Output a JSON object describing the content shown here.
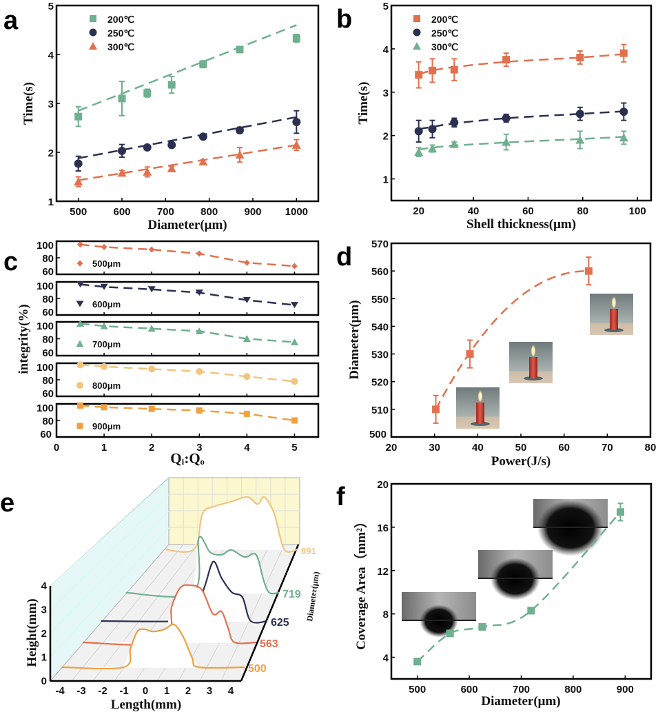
{
  "chart_data": [
    {
      "panel": "a",
      "type": "scatter",
      "xlabel": "Diameter(μm)",
      "ylabel": "Time(s)",
      "xlim": [
        450,
        1050
      ],
      "ylim": [
        1,
        5
      ],
      "xticks": [
        500,
        600,
        700,
        800,
        900,
        1000
      ],
      "yticks": [
        1,
        2,
        3,
        4,
        5
      ],
      "legend_position": "top-left",
      "x": [
        500,
        600,
        658,
        714,
        786,
        870,
        1000
      ],
      "series": [
        {
          "name": "200℃",
          "marker": "square",
          "color": "#6fb08f",
          "values": [
            2.73,
            3.1,
            3.21,
            3.38,
            3.8,
            4.1,
            4.33
          ],
          "errors": [
            0.2,
            0.35,
            0.08,
            0.17,
            0.07,
            0.03,
            0.08
          ],
          "fit": [
            [
              500,
              2.85
            ],
            [
              1000,
              4.6
            ]
          ]
        },
        {
          "name": "250℃",
          "marker": "circle",
          "color": "#2b3050",
          "values": [
            1.77,
            2.03,
            2.1,
            2.15,
            2.32,
            2.45,
            2.62
          ],
          "errors": [
            0.15,
            0.13,
            0.03,
            0.03,
            0.03,
            0.06,
            0.23
          ],
          "fit": [
            [
              500,
              1.88
            ],
            [
              1000,
              2.72
            ]
          ]
        },
        {
          "name": "300℃",
          "marker": "triangle",
          "color": "#e2704f",
          "values": [
            1.4,
            1.58,
            1.6,
            1.67,
            1.81,
            1.95,
            2.15
          ],
          "errors": [
            0.1,
            0.05,
            0.1,
            0.04,
            0.04,
            0.15,
            0.11
          ],
          "fit": [
            [
              500,
              1.43
            ],
            [
              1000,
              2.15
            ]
          ]
        }
      ]
    },
    {
      "panel": "b",
      "type": "scatter",
      "xlabel": "Shell thickness(μm)",
      "ylabel": "Time(s)",
      "xlim": [
        10,
        105
      ],
      "ylim": [
        0.5,
        5
      ],
      "xticks": [
        20,
        40,
        60,
        80,
        100
      ],
      "yticks": [
        1,
        2,
        3,
        4,
        5
      ],
      "legend_position": "top-left",
      "x": [
        20,
        25,
        33,
        52,
        79,
        95
      ],
      "series": [
        {
          "name": "200℃",
          "marker": "square",
          "color": "#e2704f",
          "values": [
            3.4,
            3.5,
            3.52,
            3.75,
            3.8,
            3.9
          ],
          "errors": [
            0.3,
            0.27,
            0.25,
            0.15,
            0.15,
            0.2
          ],
          "fit": [
            [
              20,
              3.42
            ],
            [
              25,
              3.5
            ],
            [
              33,
              3.58
            ],
            [
              52,
              3.7
            ],
            [
              79,
              3.8
            ],
            [
              95,
              3.88
            ]
          ]
        },
        {
          "name": "250℃",
          "marker": "circle",
          "color": "#2b3050",
          "values": [
            2.1,
            2.15,
            2.3,
            2.4,
            2.5,
            2.55
          ],
          "errors": [
            0.25,
            0.2,
            0.1,
            0.09,
            0.15,
            0.2
          ],
          "fit": [
            [
              20,
              2.15
            ],
            [
              25,
              2.2
            ],
            [
              33,
              2.28
            ],
            [
              52,
              2.4
            ],
            [
              79,
              2.5
            ],
            [
              95,
              2.56
            ]
          ]
        },
        {
          "name": "300℃",
          "marker": "triangle",
          "color": "#6fb08f",
          "values": [
            1.62,
            1.7,
            1.8,
            1.85,
            1.9,
            1.95
          ],
          "errors": [
            0.1,
            0.08,
            0.05,
            0.18,
            0.2,
            0.15
          ],
          "fit": [
            [
              20,
              1.68
            ],
            [
              25,
              1.72
            ],
            [
              33,
              1.77
            ],
            [
              52,
              1.84
            ],
            [
              79,
              1.92
            ],
            [
              95,
              1.97
            ]
          ]
        }
      ]
    },
    {
      "panel": "c",
      "type": "line",
      "xlabel": "Qᵢ:Qₒ",
      "ylabel": "integrity(%)",
      "xlim": [
        0,
        5.5
      ],
      "ylim": [
        60,
        100
      ],
      "xticks": [
        0,
        1,
        2,
        3,
        4,
        5
      ],
      "yticks": [
        60,
        80,
        100
      ],
      "x": [
        0.5,
        1,
        2,
        3,
        4,
        5
      ],
      "series": [
        {
          "name": "500μm",
          "marker": "diamond",
          "color": "#e2704f",
          "values": [
            96,
            93,
            90,
            85,
            74,
            70
          ]
        },
        {
          "name": "600μm",
          "marker": "triangle-down",
          "color": "#2b3050",
          "values": [
            97,
            94,
            91,
            87,
            78,
            72
          ]
        },
        {
          "name": "700μm",
          "marker": "triangle",
          "color": "#6fb08f",
          "values": [
            98,
            95,
            92,
            89,
            80,
            76
          ]
        },
        {
          "name": "800μm",
          "marker": "circle",
          "color": "#f2c57e",
          "values": [
            98,
            96,
            93,
            90,
            84,
            78
          ]
        },
        {
          "name": "900μm",
          "marker": "square",
          "color": "#f0a040",
          "values": [
            98,
            96,
            94,
            92,
            88,
            80
          ]
        }
      ]
    },
    {
      "panel": "d",
      "type": "scatter",
      "xlabel": "Power(J/s)",
      "ylabel": "Diameter(μm)",
      "xlim": [
        20,
        80
      ],
      "ylim": [
        500,
        570
      ],
      "xticks": [
        20,
        30,
        40,
        50,
        60,
        70,
        80
      ],
      "yticks": [
        500,
        510,
        520,
        530,
        540,
        550,
        560,
        570
      ],
      "color": "#e2704f",
      "x": [
        30.3,
        38.2,
        65.7
      ],
      "values": [
        510,
        530,
        560
      ],
      "errors": [
        5,
        5,
        5
      ],
      "insets": [
        "candle-photo",
        "candle-photo",
        "candle-photo"
      ]
    },
    {
      "panel": "e",
      "type": "line",
      "xlabel": "Length(mm)",
      "ylabel": "Height(mm)",
      "zlabel": "Diameter(μm)",
      "xlim": [
        -4,
        4
      ],
      "ylim": [
        0,
        4
      ],
      "xticks": [
        -4,
        -3,
        -2,
        -1,
        0,
        1,
        2,
        3,
        4
      ],
      "yticks": [
        0,
        1,
        2,
        3,
        4
      ],
      "series": [
        {
          "name": "500",
          "color": "#f0a040",
          "points": [
            [
              -4,
              0
            ],
            [
              -1.3,
              0
            ],
            [
              -1,
              0.8
            ],
            [
              -0.7,
              1.5
            ],
            [
              -0.4,
              1.6
            ],
            [
              0,
              1.5
            ],
            [
              0.5,
              1.6
            ],
            [
              0.9,
              1.8
            ],
            [
              1.3,
              1.3
            ],
            [
              1.7,
              0.4
            ],
            [
              2,
              0
            ],
            [
              4,
              0
            ]
          ]
        },
        {
          "name": "563",
          "color": "#e2704f",
          "points": [
            [
              -4,
              0
            ],
            [
              -0.3,
              0
            ],
            [
              0.1,
              1.5
            ],
            [
              0.5,
              2.3
            ],
            [
              1,
              2.4
            ],
            [
              1.5,
              2.2
            ],
            [
              2,
              1.2
            ],
            [
              2.4,
              1.3
            ],
            [
              2.7,
              0.6
            ],
            [
              3,
              0
            ],
            [
              4,
              0
            ]
          ]
        },
        {
          "name": "625",
          "color": "#2b3050",
          "points": [
            [
              -4,
              0
            ],
            [
              0,
              0
            ],
            [
              0.5,
              0.3
            ],
            [
              1,
              1.5
            ],
            [
              1.4,
              2.5
            ],
            [
              1.8,
              1.8
            ],
            [
              2.3,
              1.2
            ],
            [
              2.8,
              1.0
            ],
            [
              3.2,
              0
            ],
            [
              4,
              0
            ]
          ]
        },
        {
          "name": "719",
          "color": "#6fb08f",
          "points": [
            [
              -4,
              0
            ],
            [
              -0.5,
              0
            ],
            [
              -0.2,
              2.3
            ],
            [
              0.4,
              1.7
            ],
            [
              1,
              1.6
            ],
            [
              1.5,
              1.8
            ],
            [
              2.2,
              1.5
            ],
            [
              2.8,
              1.6
            ],
            [
              3.2,
              0.5
            ],
            [
              3.5,
              0
            ],
            [
              4,
              0
            ]
          ]
        },
        {
          "name": "891",
          "color": "#f2c57e",
          "points": [
            [
              -4,
              0
            ],
            [
              -2.2,
              0
            ],
            [
              -1.7,
              1.5
            ],
            [
              -1,
              1.8
            ],
            [
              0,
              2.0
            ],
            [
              1,
              2.2
            ],
            [
              1.6,
              1.9
            ],
            [
              2,
              2.2
            ],
            [
              2.6,
              1.5
            ],
            [
              3.2,
              0
            ],
            [
              4,
              0
            ]
          ]
        }
      ]
    },
    {
      "panel": "f",
      "type": "scatter",
      "xlabel": "Diameter(μm)",
      "ylabel": "Coverage Area（mm²）",
      "xlim": [
        450,
        950
      ],
      "ylim": [
        2,
        20
      ],
      "xticks": [
        500,
        600,
        700,
        800,
        900
      ],
      "yticks": [
        4,
        8,
        12,
        16,
        20
      ],
      "color": "#6fb08f",
      "x": [
        500,
        563,
        625,
        719,
        891
      ],
      "values": [
        3.6,
        6.2,
        6.8,
        8.3,
        17.4
      ],
      "errors": [
        0.2,
        0.2,
        0.2,
        0.2,
        0.8
      ],
      "insets": [
        "spray-photo",
        "spray-photo",
        "spray-photo"
      ]
    }
  ]
}
